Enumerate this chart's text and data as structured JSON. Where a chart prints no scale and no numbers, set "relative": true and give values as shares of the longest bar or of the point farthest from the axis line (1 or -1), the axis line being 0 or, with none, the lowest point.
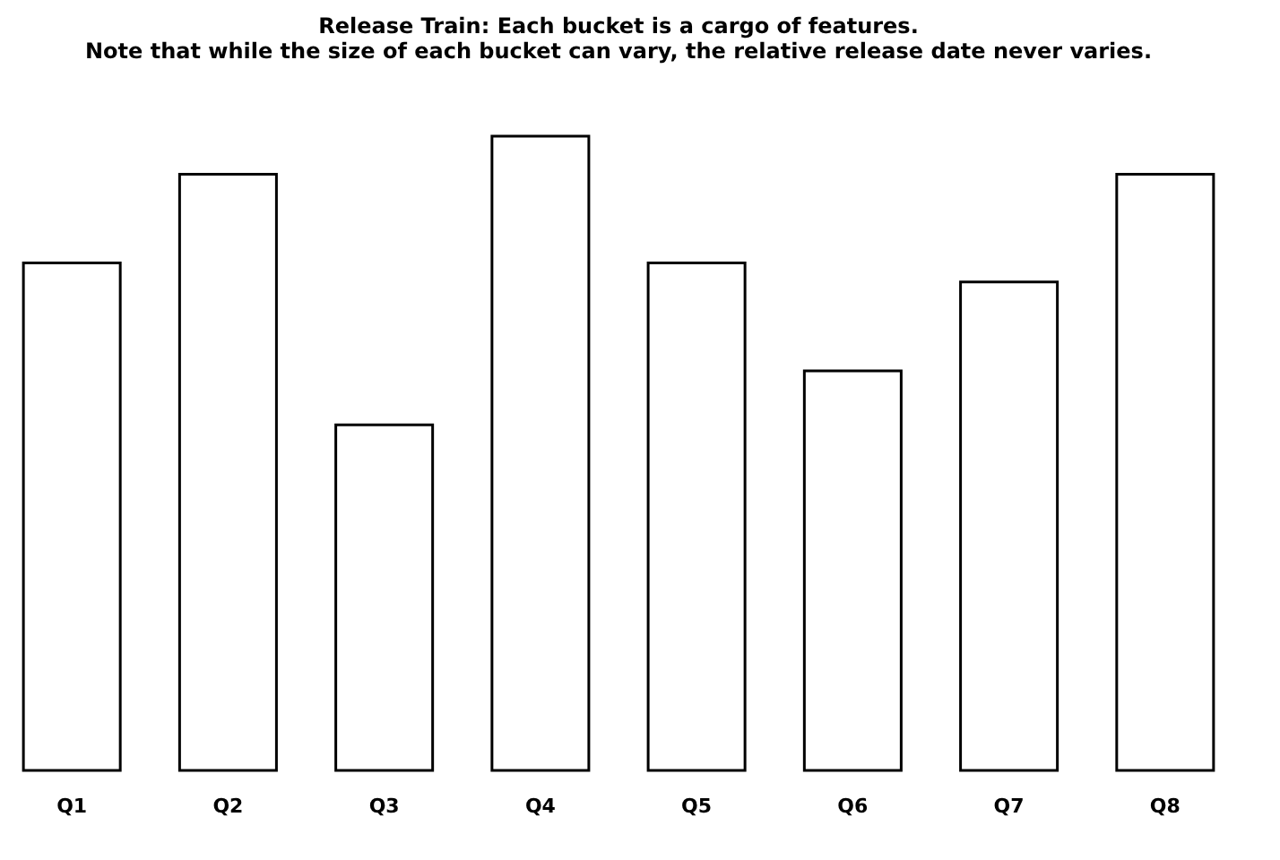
{
  "chart_data": {
    "type": "bar",
    "title": "Release Train: Each bucket is a cargo of features.",
    "subtitle": "Note that while the size of each bucket can vary, the relative release date never varies.",
    "categories": [
      "Q1",
      "Q2",
      "Q3",
      "Q4",
      "Q5",
      "Q6",
      "Q7",
      "Q8"
    ],
    "values": [
      0.8,
      0.94,
      0.545,
      1,
      0.8,
      0.63,
      0.77,
      0.94
    ],
    "color": "#ffffff",
    "relative": true
  }
}
